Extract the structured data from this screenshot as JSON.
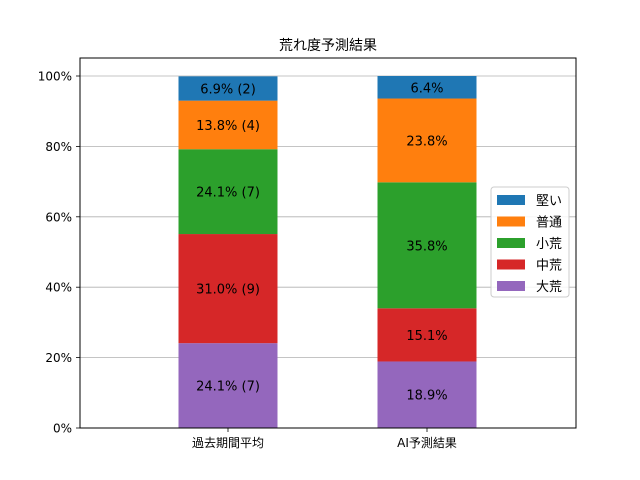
{
  "chart_data": {
    "type": "bar",
    "stacked": true,
    "title": "荒れ度予測結果",
    "xlabel": "",
    "ylabel": "",
    "ylim": [
      0,
      100
    ],
    "y_unit": "%",
    "y_ticks": [
      "0%",
      "20%",
      "40%",
      "60%",
      "80%",
      "100%"
    ],
    "categories": [
      "過去期間平均",
      "AI予測結果"
    ],
    "grid": "horizontal",
    "legend_position": "right",
    "series": [
      {
        "name": "大荒",
        "color": "#9467bd",
        "values": [
          24.1,
          18.9
        ],
        "labels": [
          "24.1% (7)",
          "18.9%"
        ]
      },
      {
        "name": "中荒",
        "color": "#d62728",
        "values": [
          31.0,
          15.1
        ],
        "labels": [
          "31.0% (9)",
          "15.1%"
        ]
      },
      {
        "name": "小荒",
        "color": "#2ca02c",
        "values": [
          24.1,
          35.8
        ],
        "labels": [
          "24.1% (7)",
          "35.8%"
        ]
      },
      {
        "name": "普通",
        "color": "#ff7f0e",
        "values": [
          13.8,
          23.8
        ],
        "labels": [
          "13.8% (4)",
          "23.8%"
        ]
      },
      {
        "name": "堅い",
        "color": "#1f77b4",
        "values": [
          6.9,
          6.4
        ],
        "labels": [
          "6.9% (2)",
          "6.4%"
        ]
      }
    ],
    "legend_order": [
      "堅い",
      "普通",
      "小荒",
      "中荒",
      "大荒"
    ]
  }
}
